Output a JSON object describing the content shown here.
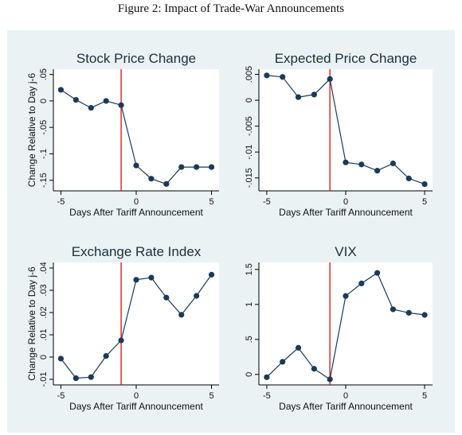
{
  "caption": "Figure 2: Impact of Trade-War Announcements",
  "chart_data": [
    {
      "type": "line",
      "title": "Stock Price Change",
      "xlabel": "Days After Tariff Announcement",
      "ylabel": "Change Relative to Day j-6",
      "x": [
        -5,
        -4,
        -3,
        -2,
        -1,
        0,
        1,
        2,
        3,
        4,
        5
      ],
      "values": [
        0.021,
        0.002,
        -0.013,
        0.0,
        -0.008,
        -0.122,
        -0.147,
        -0.157,
        -0.125,
        -0.125,
        -0.125
      ],
      "xlim": [
        -5.5,
        5.5
      ],
      "ylim": [
        -0.17,
        0.06
      ],
      "xticks": [
        -5,
        0,
        5
      ],
      "yticks": [
        0.05,
        0,
        -0.05,
        -0.1,
        -0.15
      ],
      "ytick_labels": [
        ".05",
        "0",
        "-.05",
        "-.1",
        "-.15"
      ],
      "vline": -1,
      "series_color": "#1a3a5a",
      "vline_color": "#d62020"
    },
    {
      "type": "line",
      "title": "Expected Price Change",
      "xlabel": "Days After Tariff Announcement",
      "ylabel": "",
      "x": [
        -5,
        -4,
        -3,
        -2,
        -1,
        0,
        1,
        2,
        3,
        4,
        5
      ],
      "values": [
        0.0048,
        0.0045,
        0.0006,
        0.0011,
        0.0041,
        -0.012,
        -0.0124,
        -0.0136,
        -0.0122,
        -0.0151,
        -0.0162
      ],
      "xlim": [
        -5.5,
        5.5
      ],
      "ylim": [
        -0.0175,
        0.006
      ],
      "xticks": [
        -5,
        0,
        5
      ],
      "yticks": [
        0.005,
        0,
        -0.005,
        -0.01,
        -0.015
      ],
      "ytick_labels": [
        ".005",
        "0",
        "-.005",
        "-.01",
        "-.015"
      ],
      "vline": -1,
      "series_color": "#1a3a5a",
      "vline_color": "#d62020"
    },
    {
      "type": "line",
      "title": "Exchange Rate Index",
      "xlabel": "Days After Tariff Announcement",
      "ylabel": "Change Relative to Day j-6",
      "x": [
        -5,
        -4,
        -3,
        -2,
        -1,
        0,
        1,
        2,
        3,
        4,
        5
      ],
      "values": [
        -0.0007,
        -0.0095,
        -0.009,
        0.0005,
        0.0075,
        0.0347,
        0.0357,
        0.0267,
        0.019,
        0.0275,
        0.037
      ],
      "xlim": [
        -5.5,
        5.5
      ],
      "ylim": [
        -0.0125,
        0.0425
      ],
      "xticks": [
        -5,
        0,
        5
      ],
      "yticks": [
        -0.01,
        0,
        0.01,
        0.02,
        0.03,
        0.04
      ],
      "ytick_labels": [
        "-.01",
        "0",
        ".01",
        ".02",
        ".03",
        ".04"
      ],
      "vline": -1,
      "series_color": "#1a3a5a",
      "vline_color": "#d62020"
    },
    {
      "type": "line",
      "title": "VIX",
      "xlabel": "Days After Tariff Announcement",
      "ylabel": "",
      "x": [
        -5,
        -4,
        -3,
        -2,
        -1,
        0,
        1,
        2,
        3,
        4,
        5
      ],
      "values": [
        -0.04,
        0.18,
        0.38,
        0.08,
        -0.07,
        1.12,
        1.3,
        1.45,
        0.93,
        0.88,
        0.85
      ],
      "xlim": [
        -5.5,
        5.5
      ],
      "ylim": [
        -0.15,
        1.6
      ],
      "xticks": [
        -5,
        0,
        5
      ],
      "yticks": [
        0,
        0.5,
        1,
        1.5
      ],
      "ytick_labels": [
        "0",
        ".5",
        "1",
        "1.5"
      ],
      "vline": -1,
      "series_color": "#1a3a5a",
      "vline_color": "#d62020"
    }
  ]
}
